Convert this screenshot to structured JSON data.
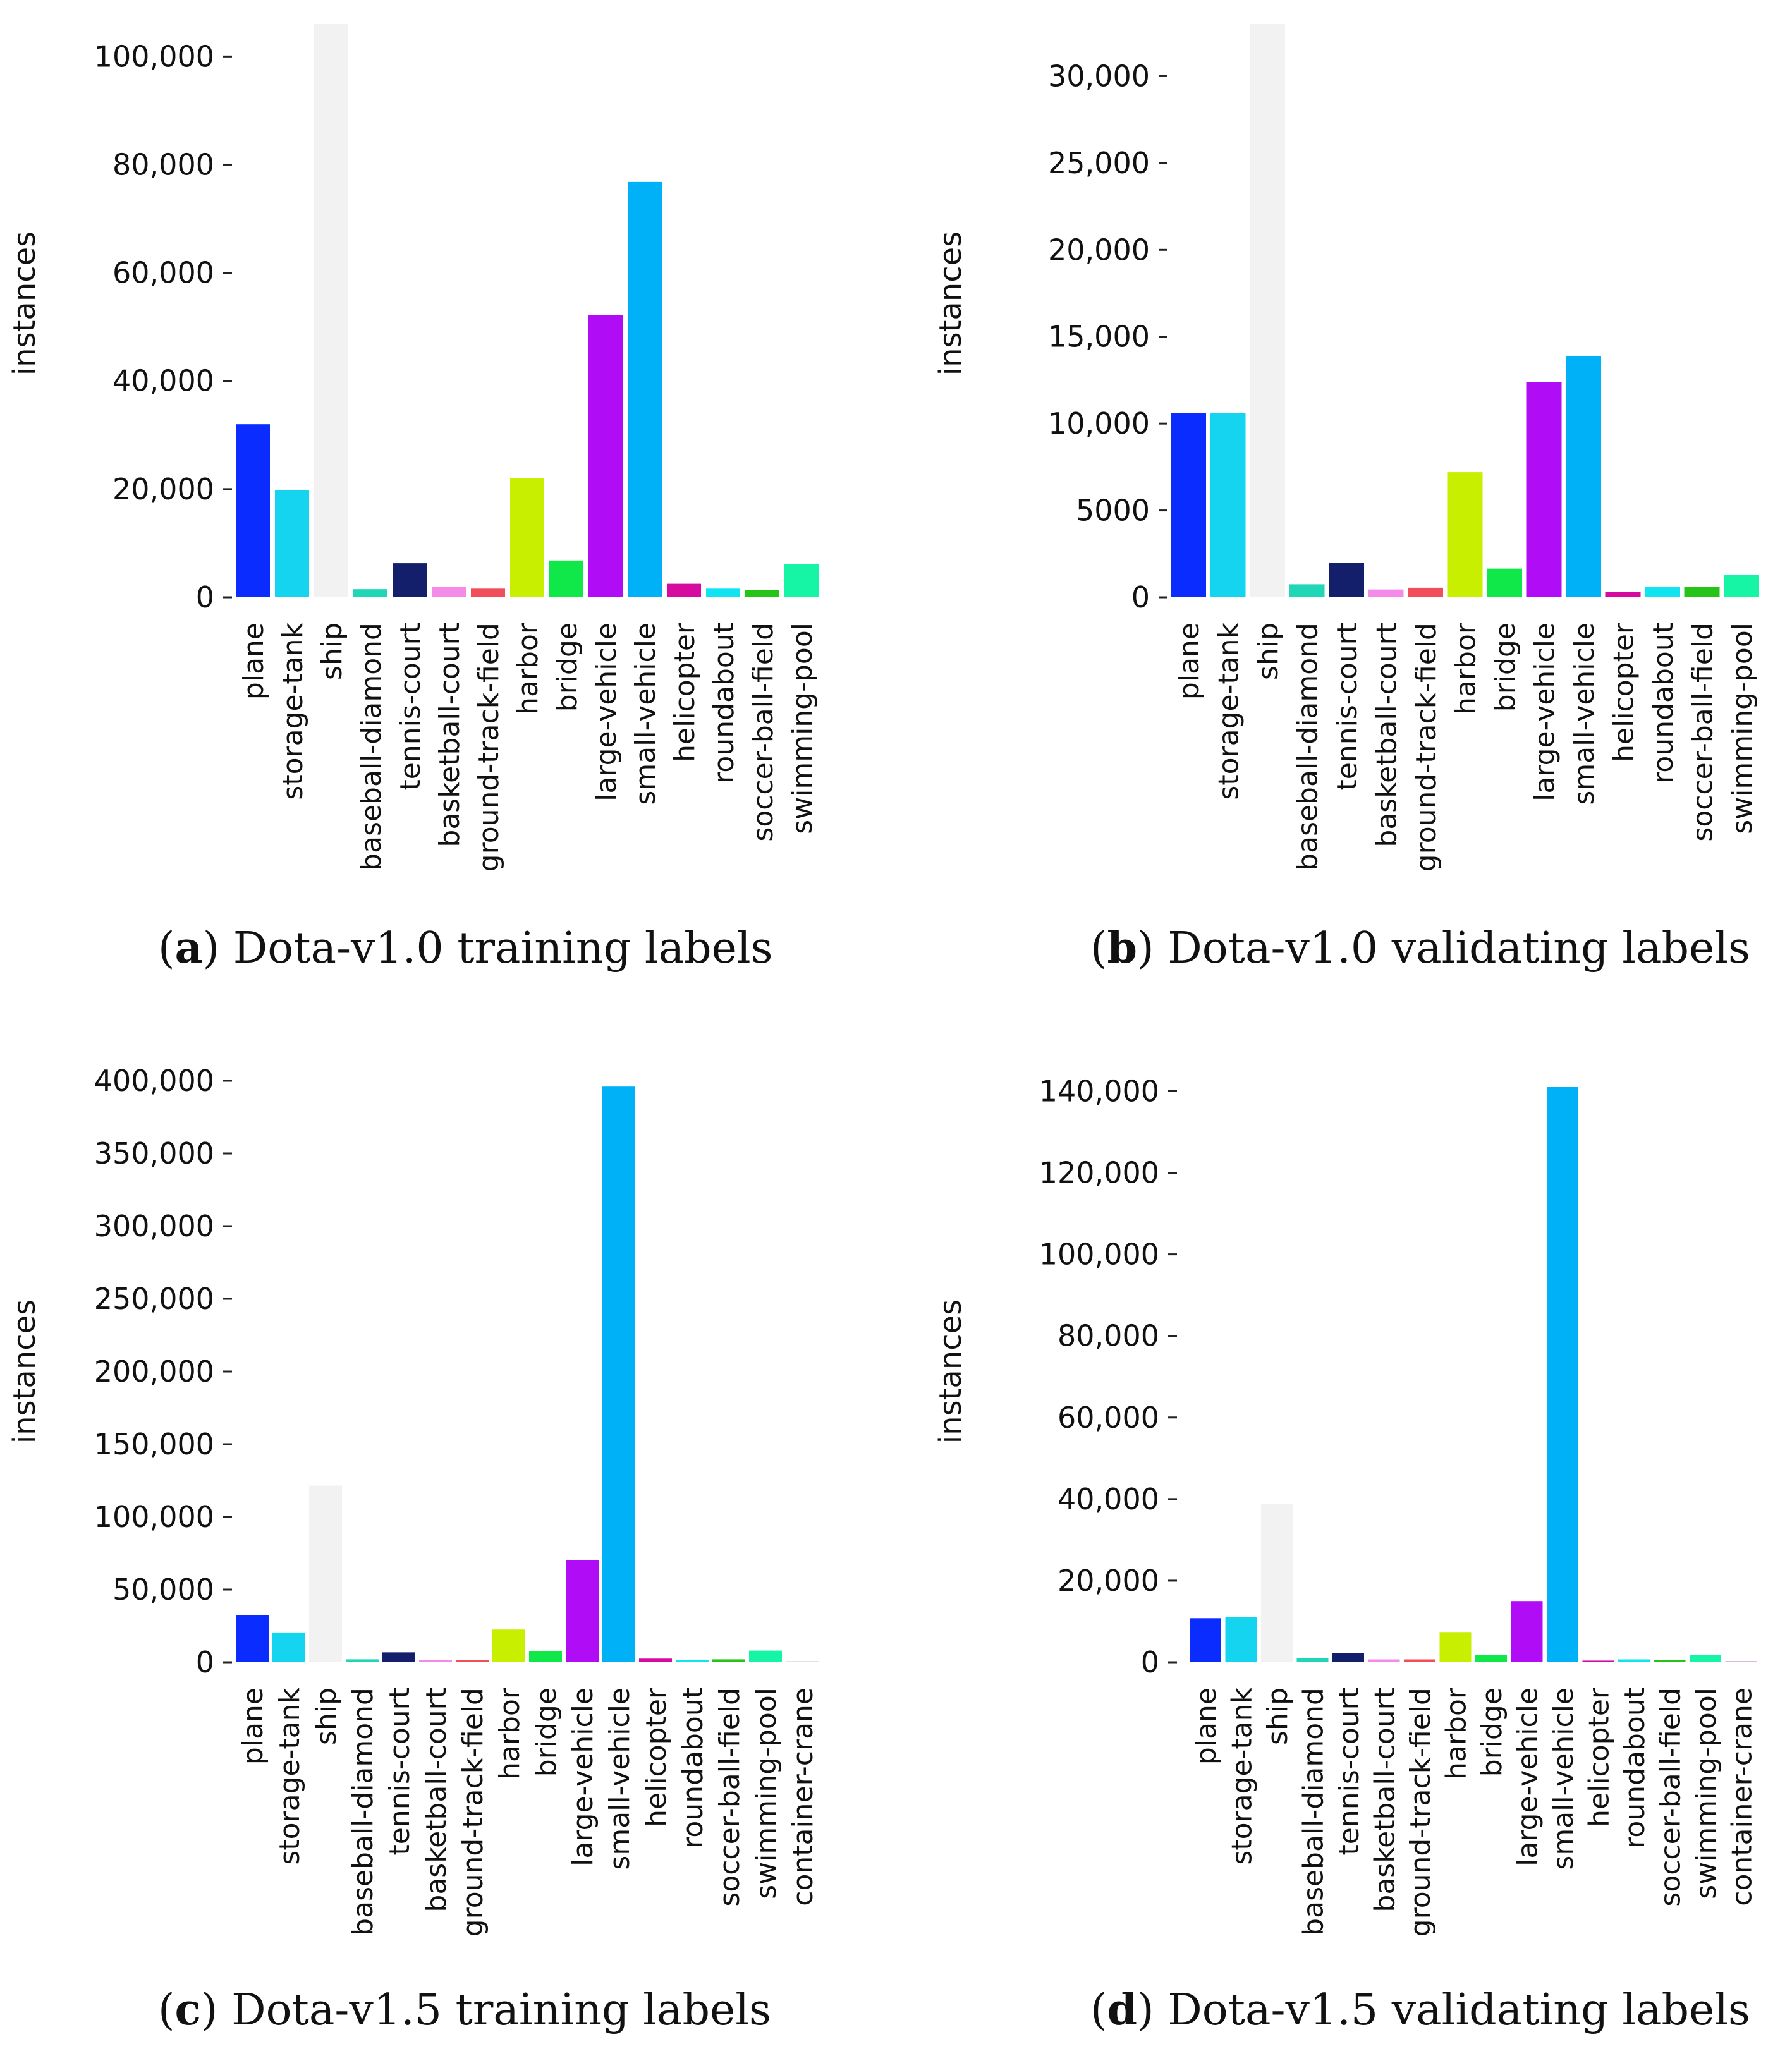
{
  "chart_data": [
    {
      "type": "bar",
      "title": "",
      "ylabel": "instances",
      "xlabel": "",
      "ylim": [
        0,
        106000
      ],
      "yticks": [
        0,
        20000,
        40000,
        60000,
        80000,
        100000
      ],
      "ytick_labels": [
        "0",
        "20,000",
        "40,000",
        "60,000",
        "80,000",
        "100,000"
      ],
      "categories": [
        "plane",
        "storage-tank",
        "ship",
        "baseball-diamond",
        "tennis-court",
        "basketball-court",
        "ground-track-field",
        "harbor",
        "bridge",
        "large-vehicle",
        "small-vehicle",
        "helicopter",
        "roundabout",
        "soccer-ball-field",
        "swimming-pool"
      ],
      "values": [
        32000,
        19800,
        106000,
        1500,
        6300,
        1900,
        1600,
        22000,
        6800,
        52200,
        76800,
        2500,
        1600,
        1400,
        6100
      ],
      "colors": [
        "#0a2cff",
        "#14d4f0",
        "#f2f2f2",
        "#1fd6b7",
        "#141f6b",
        "#f48be8",
        "#f04e5a",
        "#c8ee00",
        "#10e84a",
        "#b10cf6",
        "#00b1f7",
        "#d60a9f",
        "#10e4f2",
        "#27c418",
        "#16f5a6"
      ]
    },
    {
      "type": "bar",
      "title": "",
      "ylabel": "instances",
      "xlabel": "",
      "ylim": [
        0,
        33000
      ],
      "yticks": [
        0,
        5000,
        10000,
        15000,
        20000,
        25000,
        30000
      ],
      "ytick_labels": [
        "0",
        "5000",
        "10,000",
        "15,000",
        "20,000",
        "25,000",
        "30,000"
      ],
      "categories": [
        "plane",
        "storage-tank",
        "ship",
        "baseball-diamond",
        "tennis-court",
        "basketball-court",
        "ground-track-field",
        "harbor",
        "bridge",
        "large-vehicle",
        "small-vehicle",
        "helicopter",
        "roundabout",
        "soccer-ball-field",
        "swimming-pool"
      ],
      "values": [
        10600,
        10600,
        33000,
        750,
        2000,
        450,
        550,
        7200,
        1650,
        12400,
        13900,
        300,
        600,
        600,
        1300
      ],
      "colors": [
        "#0a2cff",
        "#14d4f0",
        "#f2f2f2",
        "#1fd6b7",
        "#141f6b",
        "#f48be8",
        "#f04e5a",
        "#c8ee00",
        "#10e84a",
        "#b10cf6",
        "#00b1f7",
        "#d60a9f",
        "#10e4f2",
        "#27c418",
        "#16f5a6"
      ]
    },
    {
      "type": "bar",
      "title": "",
      "ylabel": "instances",
      "xlabel": "",
      "ylim": [
        0,
        400000
      ],
      "yticks": [
        0,
        50000,
        100000,
        150000,
        200000,
        250000,
        300000,
        350000,
        400000
      ],
      "ytick_labels": [
        "0",
        "50,000",
        "100,000",
        "150,000",
        "200,000",
        "250,000",
        "300,000",
        "350,000",
        "400,000"
      ],
      "categories": [
        "plane",
        "storage-tank",
        "ship",
        "baseball-diamond",
        "tennis-court",
        "basketball-court",
        "ground-track-field",
        "harbor",
        "bridge",
        "large-vehicle",
        "small-vehicle",
        "helicopter",
        "roundabout",
        "soccer-ball-field",
        "swimming-pool",
        "container-crane"
      ],
      "values": [
        32500,
        20500,
        121500,
        2000,
        6800,
        1500,
        1500,
        22500,
        7500,
        70000,
        396000,
        2500,
        1500,
        2000,
        8000,
        500
      ],
      "colors": [
        "#0a2cff",
        "#14d4f0",
        "#f2f2f2",
        "#1fd6b7",
        "#141f6b",
        "#f48be8",
        "#f04e5a",
        "#c8ee00",
        "#10e84a",
        "#b10cf6",
        "#00b1f7",
        "#d60a9f",
        "#10e4f2",
        "#27c418",
        "#16f5a6",
        "#6b1f70"
      ]
    },
    {
      "type": "bar",
      "title": "",
      "ylabel": "instances",
      "xlabel": "",
      "ylim": [
        0,
        141000
      ],
      "yticks": [
        0,
        20000,
        40000,
        60000,
        80000,
        100000,
        120000,
        140000
      ],
      "ytick_labels": [
        "0",
        "20,000",
        "40,000",
        "60,000",
        "80,000",
        "100,000",
        "120,000",
        "140,000"
      ],
      "categories": [
        "plane",
        "storage-tank",
        "ship",
        "baseball-diamond",
        "tennis-court",
        "basketball-court",
        "ground-track-field",
        "harbor",
        "bridge",
        "large-vehicle",
        "small-vehicle",
        "helicopter",
        "roundabout",
        "soccer-ball-field",
        "swimming-pool",
        "container-crane"
      ],
      "values": [
        10800,
        11000,
        38800,
        1000,
        2300,
        700,
        700,
        7400,
        1800,
        15000,
        141000,
        400,
        700,
        600,
        1800,
        200
      ],
      "colors": [
        "#0a2cff",
        "#14d4f0",
        "#f2f2f2",
        "#1fd6b7",
        "#141f6b",
        "#f48be8",
        "#f04e5a",
        "#c8ee00",
        "#10e84a",
        "#b10cf6",
        "#00b1f7",
        "#d60a9f",
        "#10e4f2",
        "#27c418",
        "#16f5a6",
        "#6b1f70"
      ]
    }
  ],
  "captions": [
    {
      "letter": "a",
      "text": " Dota-v1.0 training labels"
    },
    {
      "letter": "b",
      "text": " Dota-v1.0 validating labels"
    },
    {
      "letter": "c",
      "text": " Dota-v1.5 training labels"
    },
    {
      "letter": "d",
      "text": " Dota-v1.5 validating labels"
    }
  ]
}
